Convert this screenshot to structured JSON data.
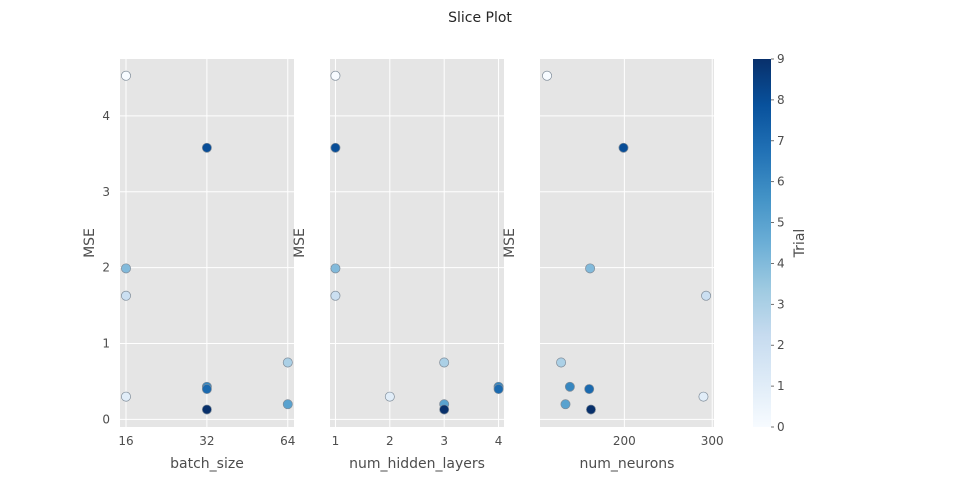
{
  "chart_data": {
    "type": "scatter",
    "title": "Slice Plot",
    "ylabel": "MSE",
    "ylim": [
      -0.1,
      4.75
    ],
    "yticks": [
      0,
      1,
      2,
      3,
      4
    ],
    "grid": true,
    "colormap": {
      "name": "Blues",
      "label": "Trial",
      "min": 0,
      "max": 9,
      "ticks": [
        0,
        1,
        2,
        3,
        4,
        5,
        6,
        7,
        8,
        9
      ],
      "light": "#f7fbff",
      "dark": "#08306b"
    },
    "subplots": [
      {
        "xlabel": "batch_size",
        "xscale": "log2",
        "xlim": [
          15.2,
          67.5
        ],
        "xticks": [
          16,
          32,
          64
        ],
        "tick_labels": [
          "16",
          "32",
          "64"
        ],
        "points": [
          {
            "x": 16,
            "y": 4.53,
            "trial": 0
          },
          {
            "x": 16,
            "y": 0.3,
            "trial": 1
          },
          {
            "x": 16,
            "y": 1.63,
            "trial": 2
          },
          {
            "x": 64,
            "y": 0.75,
            "trial": 3
          },
          {
            "x": 16,
            "y": 1.99,
            "trial": 4
          },
          {
            "x": 64,
            "y": 0.2,
            "trial": 5
          },
          {
            "x": 32,
            "y": 0.43,
            "trial": 6
          },
          {
            "x": 32,
            "y": 0.4,
            "trial": 7
          },
          {
            "x": 32,
            "y": 3.58,
            "trial": 8
          },
          {
            "x": 32,
            "y": 0.13,
            "trial": 9
          }
        ]
      },
      {
        "xlabel": "num_hidden_layers",
        "xscale": "linear",
        "xlim": [
          0.9,
          4.1
        ],
        "xticks": [
          1,
          2,
          3,
          4
        ],
        "tick_labels": [
          "1",
          "2",
          "3",
          "4"
        ],
        "points": [
          {
            "x": 1,
            "y": 4.53,
            "trial": 0
          },
          {
            "x": 2,
            "y": 0.3,
            "trial": 1
          },
          {
            "x": 1,
            "y": 1.63,
            "trial": 2
          },
          {
            "x": 3,
            "y": 0.75,
            "trial": 3
          },
          {
            "x": 1,
            "y": 1.99,
            "trial": 4
          },
          {
            "x": 3,
            "y": 0.2,
            "trial": 5
          },
          {
            "x": 4,
            "y": 0.43,
            "trial": 6
          },
          {
            "x": 4,
            "y": 0.4,
            "trial": 7
          },
          {
            "x": 1,
            "y": 3.58,
            "trial": 8
          },
          {
            "x": 3,
            "y": 0.13,
            "trial": 9
          }
        ]
      },
      {
        "xlabel": "num_neurons",
        "xscale": "linear",
        "xlim": [
          104,
          302
        ],
        "xticks": [
          200,
          300
        ],
        "tick_labels": [
          "200",
          "300"
        ],
        "points": [
          {
            "x": 112,
            "y": 4.53,
            "trial": 0
          },
          {
            "x": 290,
            "y": 0.3,
            "trial": 1
          },
          {
            "x": 293,
            "y": 1.63,
            "trial": 2
          },
          {
            "x": 128,
            "y": 0.75,
            "trial": 3
          },
          {
            "x": 161,
            "y": 1.99,
            "trial": 4
          },
          {
            "x": 133,
            "y": 0.2,
            "trial": 5
          },
          {
            "x": 138,
            "y": 0.43,
            "trial": 6
          },
          {
            "x": 160,
            "y": 0.4,
            "trial": 7
          },
          {
            "x": 199,
            "y": 3.58,
            "trial": 8
          },
          {
            "x": 162,
            "y": 0.13,
            "trial": 9
          }
        ]
      }
    ]
  }
}
